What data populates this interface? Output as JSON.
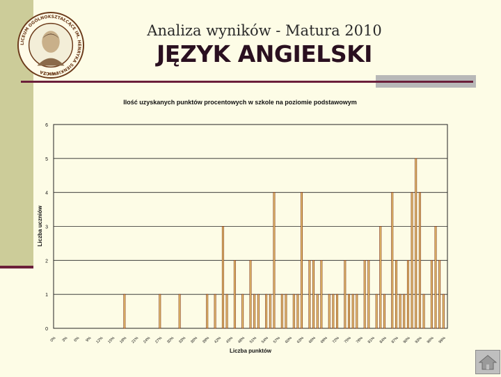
{
  "header": {
    "title": "Analiza wyników  - Matura 2010",
    "subject": "JĘZYK ANGIELSKI"
  },
  "logo": {
    "ring_text": "LICEUM OGÓLNOKSZTAŁCĄCE IM. HENRYKA SIENKIEWICZA",
    "bottom_text": "ŁUKÓW"
  },
  "chart_data": {
    "type": "bar",
    "title": "Ilość uzyskanych punktów procentowych w szkole na poziomie podstawowym",
    "xlabel": "Liczba punktów",
    "ylabel": "Liczba uczniów",
    "ylim": [
      0,
      6
    ],
    "yticks": [
      "0",
      "1",
      "2",
      "3",
      "4",
      "5",
      "6"
    ],
    "grid": true,
    "legend": "none",
    "bar_fill": "#f2d27a",
    "bar_edge": "#7a2a10",
    "xlim": [
      0,
      100
    ],
    "xticks": [
      0,
      3,
      6,
      9,
      12,
      15,
      18,
      21,
      24,
      27,
      30,
      33,
      36,
      39,
      42,
      45,
      48,
      51,
      54,
      57,
      60,
      63,
      66,
      69,
      72,
      75,
      78,
      81,
      84,
      87,
      90,
      93,
      96,
      99
    ],
    "categories": [
      18,
      27,
      32,
      39,
      41,
      43,
      44,
      46,
      48,
      50,
      51,
      52,
      54,
      55,
      56,
      58,
      59,
      61,
      62,
      63,
      65,
      66,
      67,
      68,
      70,
      71,
      72,
      74,
      75,
      76,
      77,
      79,
      80,
      82,
      83,
      84,
      86,
      87,
      88,
      89,
      90,
      91,
      92,
      93,
      94,
      96,
      97,
      98,
      99
    ],
    "values": [
      1,
      1,
      1,
      1,
      1,
      3,
      1,
      2,
      1,
      2,
      1,
      1,
      1,
      1,
      4,
      1,
      1,
      1,
      1,
      4,
      2,
      2,
      1,
      2,
      1,
      1,
      1,
      2,
      1,
      1,
      1,
      2,
      2,
      1,
      3,
      1,
      4,
      2,
      1,
      1,
      2,
      4,
      5,
      4,
      1,
      2,
      3,
      2,
      1
    ]
  }
}
